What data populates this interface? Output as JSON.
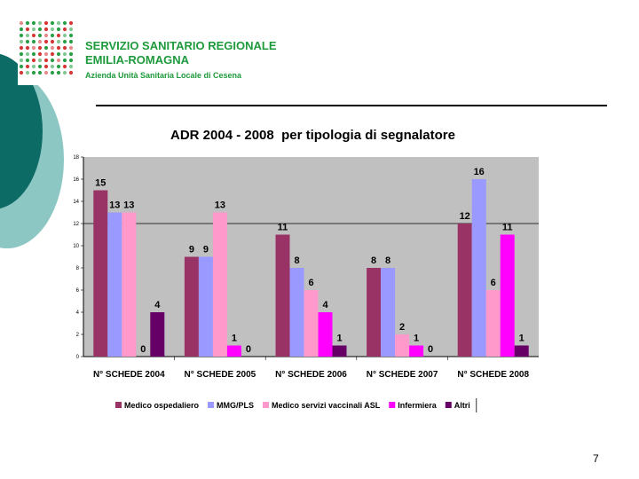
{
  "logo": {
    "line1": "SERVIZIO SANITARIO REGIONALE",
    "line2": "EMILIA-ROMAGNA",
    "line3": "Azienda Unità Sanitaria Locale di Cesena"
  },
  "page_number": "7",
  "colors": {
    "teal_dark": "#0d6b66",
    "teal_light": "#8cc7c4",
    "plot_bg": "#c0c0c0",
    "logo_green": "#1e9a3c",
    "logo_red": "#d42b2b"
  },
  "chart_data": {
    "type": "bar",
    "title": "ADR 2004 - 2008  per tipologia di segnalatore",
    "categories": [
      "N° SCHEDE 2004",
      "N° SCHEDE 2005",
      "N° SCHEDE 2006",
      "N° SCHEDE 2007",
      "N° SCHEDE 2008"
    ],
    "series": [
      {
        "name": "Medico ospedaliero",
        "color": "#993366",
        "values": [
          15,
          9,
          11,
          8,
          12
        ]
      },
      {
        "name": "MMG/PLS",
        "color": "#9999ff",
        "values": [
          13,
          9,
          8,
          8,
          16
        ]
      },
      {
        "name": "Medico servizi vaccinali ASL",
        "color": "#ff99cc",
        "values": [
          13,
          13,
          6,
          2,
          6
        ]
      },
      {
        "name": "Infermiera",
        "color": "#ff00ff",
        "values": [
          0,
          1,
          4,
          1,
          11
        ]
      },
      {
        "name": "Altri",
        "color": "#660066",
        "values": [
          4,
          0,
          1,
          0,
          1
        ]
      }
    ],
    "yticks": [
      "0",
      "2",
      "4",
      "6",
      "8",
      "10",
      "12",
      "14",
      "16",
      "18"
    ],
    "ylim": [
      0,
      18
    ],
    "gridlines": [
      12
    ],
    "legend_position": "bottom"
  }
}
